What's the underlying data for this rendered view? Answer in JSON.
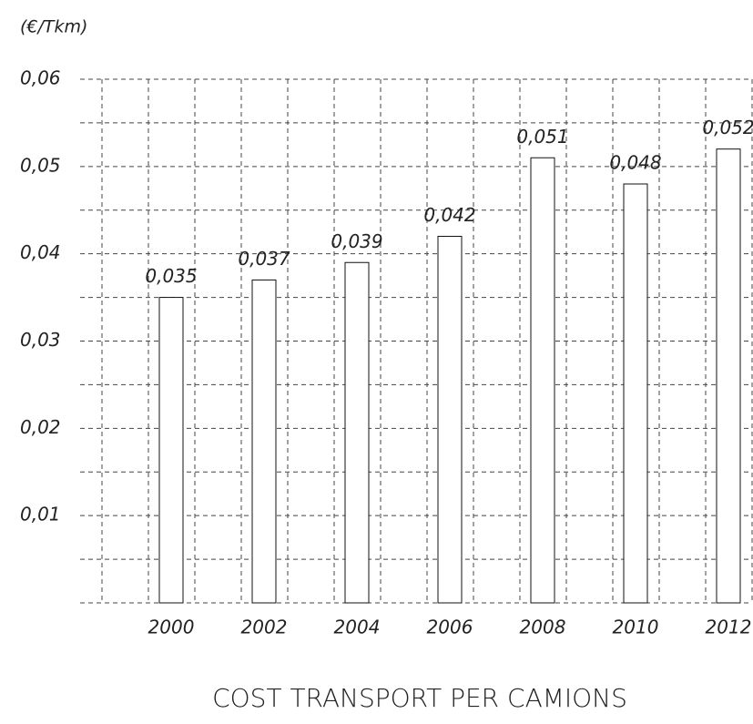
{
  "chart_data": {
    "type": "bar",
    "title": "COST TRANSPORT PER CAMIONS",
    "y_label": "(€/Tkm)",
    "categories": [
      "2000",
      "2002",
      "2004",
      "2006",
      "2008",
      "2010",
      "2012"
    ],
    "values": [
      0.035,
      0.037,
      0.039,
      0.042,
      0.051,
      0.048,
      0.052
    ],
    "value_labels": [
      "0,035",
      "0,037",
      "0,039",
      "0,042",
      "0,051",
      "0,048",
      "0,052"
    ],
    "color": "#ffffff",
    "ylim": [
      0,
      0.06
    ],
    "yticks": [
      {
        "value": 0.01,
        "label": "0,01"
      },
      {
        "value": 0.02,
        "label": "0,02"
      },
      {
        "value": 0.03,
        "label": "0,03"
      },
      {
        "value": 0.04,
        "label": "0,04"
      },
      {
        "value": 0.05,
        "label": "0,05"
      },
      {
        "value": 0.06,
        "label": "0,06"
      }
    ],
    "grid_ticks": [
      0,
      0.005,
      0.01,
      0.015,
      0.02,
      0.025,
      0.03,
      0.035,
      0.04,
      0.045,
      0.05,
      0.055,
      0.06
    ],
    "grid": true
  }
}
